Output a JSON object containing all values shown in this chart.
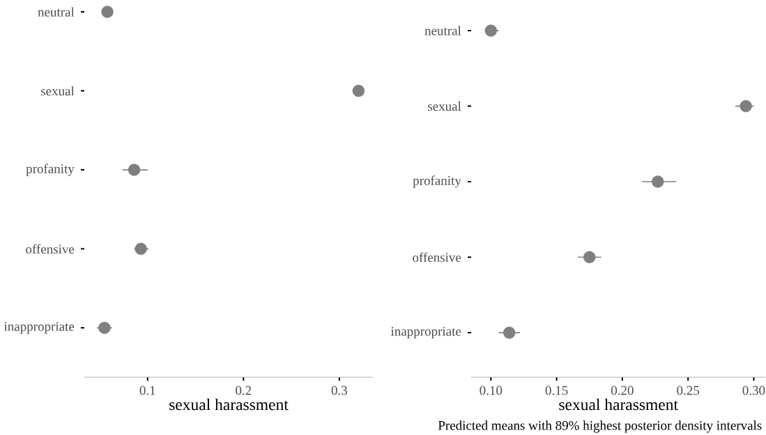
{
  "chart_data": [
    {
      "type": "scatter",
      "orientation": "horizontal",
      "categories": [
        "neutral",
        "sexual",
        "profanity",
        "offensive",
        "inappropriate"
      ],
      "values": [
        0.058,
        0.32,
        0.086,
        0.093,
        0.055
      ],
      "errors": [
        null,
        null,
        [
          0.074,
          0.1
        ],
        [
          0.086,
          0.101
        ],
        [
          0.047,
          0.063
        ]
      ],
      "color": "#7f7f7f",
      "marker": "circle",
      "xlabel": "sexual harassment",
      "xlim": [
        0.034,
        0.335
      ],
      "xticks": [
        0.1,
        0.2,
        0.3
      ]
    },
    {
      "type": "scatter",
      "orientation": "horizontal",
      "categories": [
        "neutral",
        "sexual",
        "profanity",
        "offensive",
        "inappropriate"
      ],
      "values": [
        0.1,
        0.294,
        0.227,
        0.175,
        0.114
      ],
      "errors": [
        [
          0.096,
          0.106
        ],
        [
          0.286,
          0.3
        ],
        [
          0.215,
          0.241
        ],
        [
          0.166,
          0.184
        ],
        [
          0.106,
          0.122
        ]
      ],
      "color": "#7f7f7f",
      "marker": "circle",
      "xlabel": "sexual harassment",
      "xlim": [
        0.085,
        0.309
      ],
      "xticks": [
        {
          "value": 0.1,
          "label": "0.10"
        },
        0.15,
        {
          "value": 0.2,
          "label": "0.20"
        },
        0.25,
        {
          "value": 0.3,
          "label": "0.30"
        }
      ],
      "annotations": [
        "Predicted means with 89% highest posterior density intervals"
      ]
    }
  ]
}
